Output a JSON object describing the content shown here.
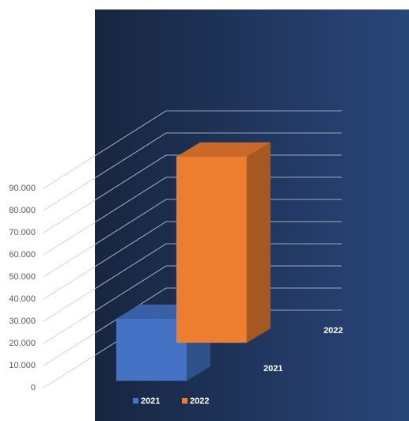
{
  "chart_data": {
    "type": "bar3d",
    "series": [
      {
        "name": "2021",
        "color": "#4472c4",
        "values": [
          28000
        ]
      },
      {
        "name": "2022",
        "color": "#ed7d31",
        "values": [
          84000
        ]
      }
    ],
    "ylim": [
      0,
      90000
    ],
    "yticks": [
      0,
      {
        "value": 10000,
        "label": "10.000"
      },
      {
        "value": 20000,
        "label": "20.000"
      },
      {
        "value": 30000,
        "label": "30.000"
      },
      {
        "value": 40000,
        "label": "40.000"
      },
      {
        "value": 50000,
        "label": "50.000"
      },
      {
        "value": 60000,
        "label": "60.000"
      },
      {
        "value": 70000,
        "label": "70.000"
      },
      {
        "value": 80000,
        "label": "80.000"
      },
      {
        "value": 90000,
        "label": "90.000"
      }
    ],
    "grid": true,
    "legend": "bottom"
  }
}
